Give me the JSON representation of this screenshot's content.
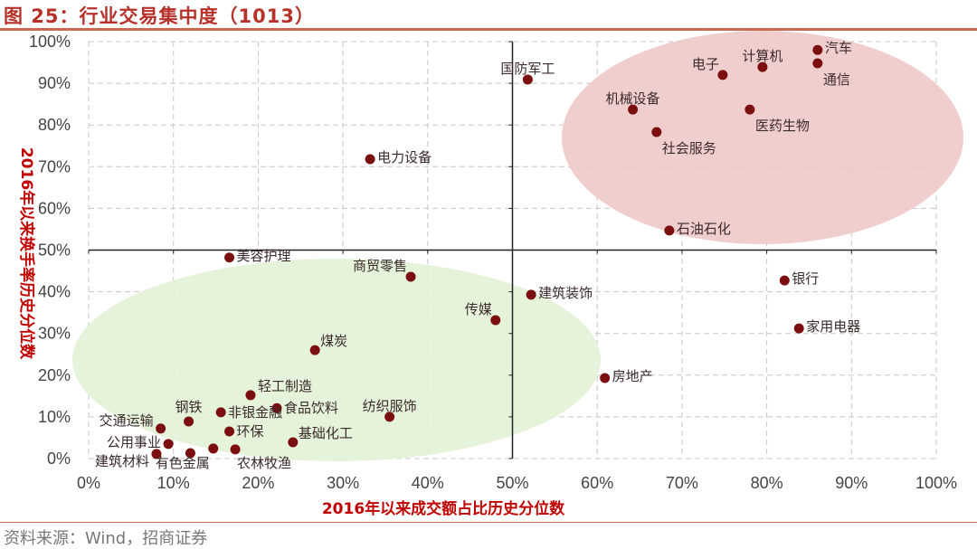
{
  "header": {
    "title": "图 25：行业交易集中度（1013）"
  },
  "footer": {
    "source": "资料来源：Wind，招商证券"
  },
  "colors": {
    "point": "#7b0f0f",
    "high_zone": "#efc9c9",
    "low_zone": "#e4f2d9",
    "title": "#b5312a",
    "axis_title": "#c00000"
  },
  "chart_data": {
    "type": "scatter",
    "title": "行业交易集中度（1013）",
    "xlabel": "2016年以来成交额占比历史分位数",
    "ylabel": "2016年以来换手率历史分位数",
    "xlim": [
      0,
      100
    ],
    "ylim": [
      0,
      100
    ],
    "x_ticks": [
      "0%",
      "10%",
      "20%",
      "30%",
      "40%",
      "50%",
      "60%",
      "70%",
      "80%",
      "90%",
      "100%"
    ],
    "y_ticks": [
      "0%",
      "10%",
      "20%",
      "30%",
      "40%",
      "50%",
      "60%",
      "70%",
      "80%",
      "90%",
      "100%"
    ],
    "grid": true,
    "points": [
      {
        "name": "汽车",
        "x": 86.0,
        "y": 98.0,
        "label_pos": "right"
      },
      {
        "name": "通信",
        "x": 86.0,
        "y": 94.8,
        "label_pos": "below-right"
      },
      {
        "name": "计算机",
        "x": 79.5,
        "y": 93.9,
        "label_pos": "above"
      },
      {
        "name": "电子",
        "x": 74.8,
        "y": 92.0,
        "label_pos": "above-left"
      },
      {
        "name": "国防军工",
        "x": 51.8,
        "y": 90.9,
        "label_pos": "above"
      },
      {
        "name": "机械设备",
        "x": 64.2,
        "y": 83.7,
        "label_pos": "above"
      },
      {
        "name": "医药生物",
        "x": 78.0,
        "y": 83.7,
        "label_pos": "below-right"
      },
      {
        "name": "社会服务",
        "x": 67.0,
        "y": 78.3,
        "label_pos": "below-right"
      },
      {
        "name": "电力设备",
        "x": 33.2,
        "y": 71.8,
        "label_pos": "right"
      },
      {
        "name": "石油石化",
        "x": 68.5,
        "y": 54.7,
        "label_pos": "right"
      },
      {
        "name": "美容护理",
        "x": 16.6,
        "y": 48.2,
        "label_pos": "right"
      },
      {
        "name": "商贸零售",
        "x": 38.0,
        "y": 43.6,
        "label_pos": "above-left"
      },
      {
        "name": "银行",
        "x": 82.1,
        "y": 42.7,
        "label_pos": "right"
      },
      {
        "name": "建筑装饰",
        "x": 52.2,
        "y": 39.3,
        "label_pos": "right"
      },
      {
        "name": "传媒",
        "x": 48.0,
        "y": 33.2,
        "label_pos": "above-left"
      },
      {
        "name": "家用电器",
        "x": 83.8,
        "y": 31.2,
        "label_pos": "right"
      },
      {
        "name": "煤炭",
        "x": 26.7,
        "y": 26.0,
        "label_pos": "above-right"
      },
      {
        "name": "房地产",
        "x": 60.9,
        "y": 19.3,
        "label_pos": "right"
      },
      {
        "name": "轻工制造",
        "x": 19.1,
        "y": 15.2,
        "label_pos": "right"
      },
      {
        "name": "食品饮料",
        "x": 22.2,
        "y": 12.1,
        "label_pos": "below-left"
      },
      {
        "name": "非银金融",
        "x": 15.6,
        "y": 11.1,
        "label_pos": "above"
      },
      {
        "name": "纺织服饰",
        "x": 35.5,
        "y": 10.0,
        "label_pos": "above"
      },
      {
        "name": "钢铁",
        "x": 11.8,
        "y": 8.9,
        "label_pos": "above-left"
      },
      {
        "name": "交通运输",
        "x": 8.5,
        "y": 7.2,
        "label_pos": "above-left"
      },
      {
        "name": "环保",
        "x": 16.6,
        "y": 6.5,
        "label_pos": "center"
      },
      {
        "name": "基础化工",
        "x": 24.1,
        "y": 3.9,
        "label_pos": "above-right"
      },
      {
        "name": "公用事业",
        "x": 9.4,
        "y": 3.5,
        "label_pos": "left"
      },
      {
        "name": "有色金属",
        "x": 14.7,
        "y": 2.4,
        "label_pos": "left"
      },
      {
        "name": "建筑材料",
        "x": 8.0,
        "y": 1.1,
        "label_pos": "right"
      },
      {
        "name": "农林牧渔",
        "x": 17.3,
        "y": 2.2,
        "label_pos": "below-left"
      },
      {
        "name": "",
        "x": 12.0,
        "y": 1.3,
        "label_pos": "none"
      }
    ]
  }
}
